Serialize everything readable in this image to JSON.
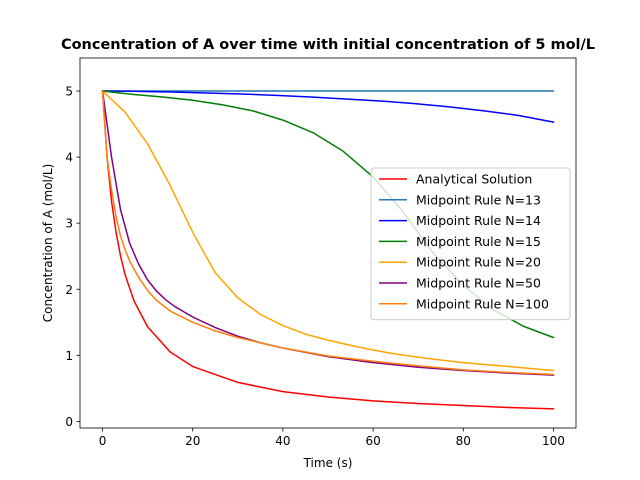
{
  "chart_data": {
    "type": "line",
    "title": "Concentration of A over time with initial concentration of 5 mol/L",
    "xlabel": "Time (s)",
    "ylabel": "Concentration of A (mol/L)",
    "xlim": [
      -5,
      105
    ],
    "ylim": [
      -0.1,
      5.5
    ],
    "xticks": [
      0,
      20,
      40,
      60,
      80,
      100
    ],
    "yticks": [
      0,
      1,
      2,
      3,
      4,
      5
    ],
    "xtick_labels": [
      "0",
      "20",
      "40",
      "60",
      "80",
      "100"
    ],
    "ytick_labels": [
      "0",
      "1",
      "2",
      "3",
      "4",
      "5"
    ],
    "grid": false,
    "legend_position": "center-right",
    "series": [
      {
        "name": "Analytical Solution",
        "color": "#ff0000",
        "x": [
          0,
          1,
          2,
          3,
          4,
          5,
          7,
          10,
          15,
          20,
          30,
          40,
          50,
          60,
          70,
          80,
          90,
          100
        ],
        "y": [
          5.0,
          4.0,
          3.33,
          2.86,
          2.5,
          2.22,
          1.82,
          1.43,
          1.05,
          0.83,
          0.59,
          0.45,
          0.37,
          0.31,
          0.27,
          0.24,
          0.21,
          0.19
        ]
      },
      {
        "name": "Midpoint Rule N=13",
        "color": "#1f77b4",
        "x": [
          0,
          100
        ],
        "y": [
          5.0,
          5.0
        ]
      },
      {
        "name": "Midpoint Rule N=14",
        "color": "#0000ff",
        "x": [
          0,
          7.69,
          15.38,
          23.08,
          30.77,
          38.46,
          46.15,
          53.85,
          61.54,
          69.23,
          76.92,
          84.62,
          92.31,
          100
        ],
        "y": [
          5.0,
          4.995,
          4.985,
          4.97,
          4.955,
          4.935,
          4.91,
          4.88,
          4.85,
          4.81,
          4.76,
          4.7,
          4.63,
          4.53
        ]
      },
      {
        "name": "Midpoint Rule N=15",
        "color": "#008000",
        "x": [
          0,
          6.67,
          13.33,
          20,
          26.67,
          33.33,
          40,
          46.67,
          53.33,
          60,
          66.67,
          73.33,
          80,
          86.67,
          93.33,
          100
        ],
        "y": [
          5.0,
          4.95,
          4.91,
          4.86,
          4.79,
          4.7,
          4.56,
          4.37,
          4.09,
          3.7,
          3.17,
          2.55,
          2.06,
          1.69,
          1.44,
          1.27
        ]
      },
      {
        "name": "Midpoint Rule N=20",
        "color": "#ffa500",
        "x": [
          0,
          5,
          10,
          15,
          20,
          25,
          30,
          35,
          40,
          45,
          50,
          55,
          60,
          65,
          70,
          75,
          80,
          85,
          90,
          95,
          100
        ],
        "y": [
          5.0,
          4.68,
          4.2,
          3.57,
          2.86,
          2.25,
          1.87,
          1.62,
          1.45,
          1.32,
          1.23,
          1.15,
          1.08,
          1.02,
          0.97,
          0.93,
          0.89,
          0.86,
          0.83,
          0.8,
          0.77
        ]
      },
      {
        "name": "Midpoint Rule N=50",
        "color": "#800080",
        "x": [
          0,
          2,
          4,
          6,
          8,
          10,
          12,
          14,
          16,
          18,
          20,
          25,
          30,
          35,
          40,
          50,
          60,
          70,
          80,
          90,
          100
        ],
        "y": [
          5.0,
          4.0,
          3.2,
          2.7,
          2.38,
          2.14,
          1.97,
          1.84,
          1.74,
          1.66,
          1.58,
          1.42,
          1.29,
          1.19,
          1.11,
          0.98,
          0.89,
          0.82,
          0.77,
          0.73,
          0.7
        ]
      },
      {
        "name": "Midpoint Rule N=100",
        "color": "#ff7f0e",
        "x": [
          0,
          1,
          2,
          3,
          4,
          5,
          6,
          7,
          8,
          10,
          12,
          15,
          20,
          25,
          30,
          40,
          50,
          60,
          70,
          80,
          90,
          100
        ],
        "y": [
          5.0,
          4.0,
          3.5,
          3.1,
          2.8,
          2.6,
          2.43,
          2.3,
          2.18,
          1.98,
          1.83,
          1.67,
          1.5,
          1.37,
          1.27,
          1.11,
          0.99,
          0.91,
          0.84,
          0.78,
          0.74,
          0.71
        ]
      }
    ]
  }
}
